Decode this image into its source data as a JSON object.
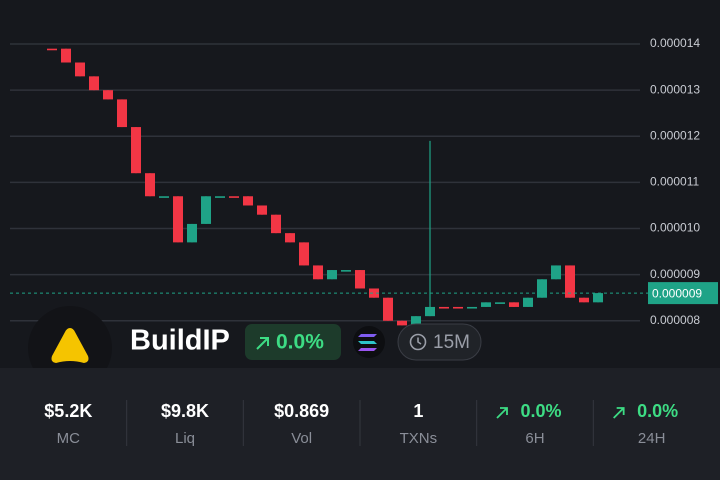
{
  "chart_data": {
    "type": "candlestick",
    "ylim": [
      7.8e-06,
      1.45e-05
    ],
    "yticks": [
      1.4e-05,
      1.3e-05,
      1.2e-05,
      1.1e-05,
      {
        "value": 1e-05,
        "label": "0.000010"
      },
      9e-06,
      8e-06
    ],
    "grid": true,
    "open": [
      1.39e-05,
      1.39e-05,
      1.36e-05,
      1.33e-05,
      1.3e-05,
      1.28e-05,
      1.22e-05,
      1.12e-05,
      1.07e-05,
      1.07e-05,
      9.7e-06,
      1.01e-05,
      1.07e-05,
      1.07e-05,
      1.07e-05,
      1.05e-05,
      1.03e-05,
      9.9e-06,
      9.7e-06,
      9.2e-06,
      8.9e-06,
      9.1e-06,
      9.1e-06,
      8.7e-06,
      8.5e-06,
      8e-06,
      7.9e-06,
      8.1e-06,
      8.3e-06,
      8.3e-06,
      8.3e-06,
      8.3e-06,
      8.4e-06,
      8.4e-06,
      8.3e-06,
      8.5e-06,
      8.9e-06,
      9.2e-06,
      8.5e-06,
      8.4e-06
    ],
    "close": [
      1.39e-05,
      1.36e-05,
      1.33e-05,
      1.3e-05,
      1.28e-05,
      1.22e-05,
      1.12e-05,
      1.07e-05,
      1.07e-05,
      9.7e-06,
      1.01e-05,
      1.07e-05,
      1.07e-05,
      1.07e-05,
      1.05e-05,
      1.03e-05,
      9.9e-06,
      9.7e-06,
      9.2e-06,
      8.9e-06,
      9.1e-06,
      9.1e-06,
      8.7e-06,
      8.5e-06,
      8e-06,
      7.9e-06,
      8.1e-06,
      8.3e-06,
      8.3e-06,
      8.3e-06,
      8.3e-06,
      8.4e-06,
      8.4e-06,
      8.3e-06,
      8.5e-06,
      8.9e-06,
      9.2e-06,
      8.5e-06,
      8.4e-06,
      8.6e-06
    ],
    "high": [
      1.39e-05,
      1.39e-05,
      1.36e-05,
      1.33e-05,
      1.3e-05,
      1.28e-05,
      1.22e-05,
      1.12e-05,
      1.07e-05,
      1.07e-05,
      1.01e-05,
      1.07e-05,
      1.07e-05,
      1.07e-05,
      1.07e-05,
      1.05e-05,
      1.03e-05,
      9.9e-06,
      9.7e-06,
      9.2e-06,
      9.1e-06,
      9.1e-06,
      9.1e-06,
      8.7e-06,
      8.5e-06,
      8e-06,
      8.1e-06,
      1.19e-05,
      8.3e-06,
      8.3e-06,
      8.3e-06,
      8.4e-06,
      8.4e-06,
      8.4e-06,
      8.5e-06,
      8.9e-06,
      9.2e-06,
      9.2e-06,
      8.5e-06,
      8.6e-06
    ],
    "low": [
      1.39e-05,
      1.36e-05,
      1.33e-05,
      1.3e-05,
      1.28e-05,
      1.22e-05,
      1.12e-05,
      1.07e-05,
      1.07e-05,
      9.7e-06,
      9.7e-06,
      1.01e-05,
      1.07e-05,
      1.07e-05,
      1.05e-05,
      1.03e-05,
      9.9e-06,
      9.7e-06,
      9.2e-06,
      8.9e-06,
      8.9e-06,
      9.1e-06,
      8.7e-06,
      8.5e-06,
      8e-06,
      7.9e-06,
      7.9e-06,
      8.1e-06,
      8.3e-06,
      8.3e-06,
      8.3e-06,
      8.3e-06,
      8.4e-06,
      8.3e-06,
      8.3e-06,
      8.5e-06,
      8.9e-06,
      8.5e-06,
      8.4e-06,
      8.4e-06
    ],
    "colors": [
      "#f23645",
      "#f23645",
      "#f23645",
      "#f23645",
      "#f23645",
      "#f23645",
      "#f23645",
      "#f23645",
      "#1fa387",
      "#f23645",
      "#1fa387",
      "#1fa387",
      "#1fa387",
      "#f23645",
      "#f23645",
      "#f23645",
      "#f23645",
      "#f23645",
      "#f23645",
      "#f23645",
      "#1fa387",
      "#1fa387",
      "#f23645",
      "#f23645",
      "#f23645",
      "#f23645",
      "#1fa387",
      "#1fa387",
      "#f23645",
      "#f23645",
      "#1fa387",
      "#1fa387",
      "#1fa387",
      "#f23645",
      "#1fa387",
      "#1fa387",
      "#1fa387",
      "#f23645",
      "#f23645",
      "#1fa387"
    ],
    "last_price": {
      "value": 8.6e-06,
      "label": "0.000009"
    },
    "last_price_color": "#1fa387"
  },
  "token": {
    "name": "BuildIP",
    "change": "0.0%",
    "interval": "15M"
  },
  "stats": [
    {
      "value": "$5.2K",
      "label": "MC"
    },
    {
      "value": "$9.8K",
      "label": "Liq"
    },
    {
      "value": "$0.869",
      "label": "Vol"
    },
    {
      "value": "1",
      "label": "TXNs"
    },
    {
      "value": "0.0%",
      "label": "6H"
    },
    {
      "value": "0.0%",
      "label": "24H"
    }
  ]
}
